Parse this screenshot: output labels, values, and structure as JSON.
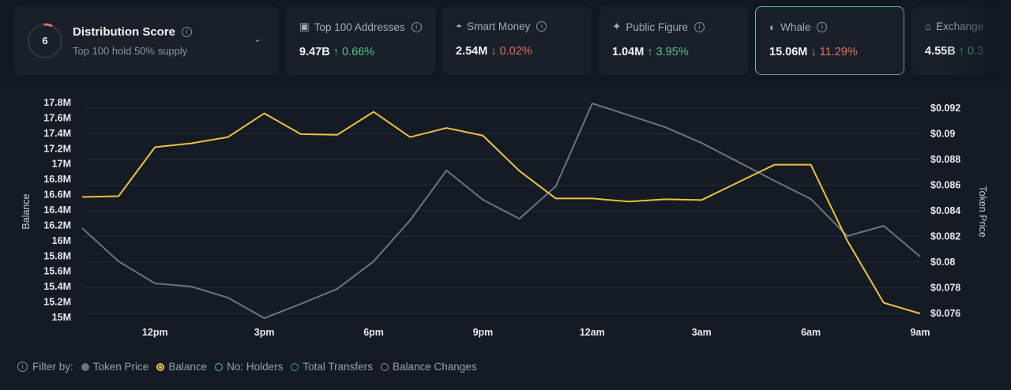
{
  "score_card": {
    "score": "6",
    "title": "Distribution Score",
    "subtitle": "Top 100 hold 50% supply",
    "score_fraction": 0.06
  },
  "metrics": [
    {
      "icon": "money-icon",
      "label": "Top 100 Addresses",
      "value": "9.47B",
      "change": "0.66%",
      "direction": "up"
    },
    {
      "icon": "sunglasses-icon",
      "label": "Smart Money",
      "value": "2.54M",
      "change": "0.02%",
      "direction": "down"
    },
    {
      "icon": "public-figure-icon",
      "label": "Public Figure",
      "value": "1.04M",
      "change": "3.95%",
      "direction": "up"
    },
    {
      "icon": "whale-icon",
      "label": "Whale",
      "value": "15.06M",
      "change": "11.29%",
      "direction": "down",
      "selected": true
    },
    {
      "icon": "bank-icon",
      "label": "Exchange",
      "value": "4.55B",
      "change": "0.3",
      "direction": "up"
    }
  ],
  "legend": {
    "label": "Filter by:",
    "items": [
      {
        "label": "Token Price",
        "color": "#6b7480",
        "active": true
      },
      {
        "label": "Balance",
        "color": "#f0c040",
        "active": true
      },
      {
        "label": "No: Holders",
        "color": "#5fb8b0",
        "active": false
      },
      {
        "label": "Total Transfers",
        "color": "#3f9d8e",
        "active": false
      },
      {
        "label": "Balance Changes",
        "color": "#c9779e",
        "active": false
      }
    ]
  },
  "chart_data": {
    "type": "line",
    "xlabel": "",
    "ylabel": "Balance",
    "y2label": "Token Price",
    "x": [
      "10am",
      "11am",
      "12pm",
      "1pm",
      "2pm",
      "3pm",
      "4pm",
      "5pm",
      "6pm",
      "7pm",
      "8pm",
      "9pm",
      "10pm",
      "11pm",
      "12am",
      "1am",
      "2am",
      "3am",
      "4am",
      "5am",
      "6am",
      "7am",
      "8am",
      "9am"
    ],
    "x_tick_labels": [
      "12pm",
      "3pm",
      "6pm",
      "9pm",
      "12am",
      "3am",
      "6am",
      "9am"
    ],
    "ylim": [
      15.0,
      17.8
    ],
    "y_ticks": [
      "17.8M",
      "17.6M",
      "17.4M",
      "17.2M",
      "17M",
      "16.8M",
      "16.6M",
      "16.4M",
      "16.2M",
      "16M",
      "15.8M",
      "15.6M",
      "15.4M",
      "15.2M",
      "15M"
    ],
    "y2lim": [
      0.076,
      0.092
    ],
    "y2_ticks": [
      "$0.092",
      "$0.09",
      "$0.088",
      "$0.086",
      "$0.084",
      "$0.082",
      "$0.08",
      "$0.078",
      "$0.076"
    ],
    "grid": true,
    "series": [
      {
        "name": "Balance",
        "axis": "left",
        "color": "#f0c040",
        "values": [
          16.57,
          16.58,
          17.22,
          17.27,
          17.35,
          17.66,
          17.39,
          17.38,
          17.68,
          17.35,
          17.47,
          17.37,
          16.91,
          16.55,
          16.55,
          16.51,
          16.54,
          16.53,
          16.76,
          16.99,
          16.99,
          16.0,
          15.19,
          15.05
        ]
      },
      {
        "name": "Token Price",
        "axis": "right",
        "color": "#6b7480",
        "values": [
          0.08265,
          0.08006,
          0.07834,
          0.07809,
          0.07723,
          0.07563,
          0.07674,
          0.07791,
          0.08006,
          0.08326,
          0.08714,
          0.08486,
          0.08338,
          0.08591,
          0.09237,
          0.09145,
          0.09052,
          0.08929,
          0.08782,
          0.08634,
          0.08492,
          0.08203,
          0.08283,
          0.08043
        ]
      }
    ]
  }
}
